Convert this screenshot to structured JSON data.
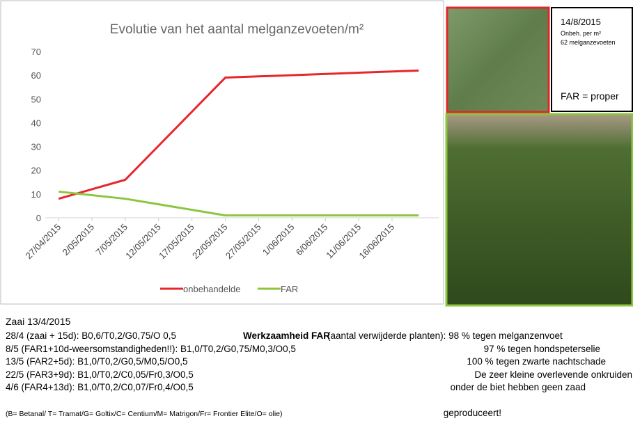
{
  "chart_data": {
    "type": "line",
    "title": "Evolutie van het aantal melganzevoeten/m²",
    "x": [
      "27/04/2015",
      "7/05/2015",
      "22/05/2015",
      "20/06/2015"
    ],
    "series": [
      {
        "name": "onbehandelde",
        "color": "#e8262a",
        "values": [
          8,
          16,
          59,
          62
        ]
      },
      {
        "name": "FAR",
        "color": "#8cc63e",
        "values": [
          11,
          8,
          1,
          1
        ]
      }
    ],
    "xlim": [
      "25/04/2015",
      "23/06/2015"
    ],
    "xticks": [
      "27/04/2015",
      "2/05/2015",
      "7/05/2015",
      "12/05/2015",
      "17/05/2015",
      "22/05/2015",
      "27/05/2015",
      "1/06/2015",
      "6/06/2015",
      "11/06/2015",
      "16/06/2015"
    ],
    "ylim": [
      0,
      70
    ],
    "yticks": [
      0,
      10,
      20,
      30,
      40,
      50,
      60,
      70
    ],
    "grid": false,
    "legend": "bottom"
  },
  "photo_note": {
    "date": "14/8/2015",
    "line1": "Onbeh. per m²",
    "line2": " 62 melganzevoeten",
    "far": "FAR = proper"
  },
  "notes": {
    "sowing": "Zaai 13/4/2015",
    "treatments": [
      "28/4 (zaai + 15d): B0,6/T0,2/G0,75/O 0,5",
      "8/5 (FAR1+10d-weersomstandigheden!!): B1,0/T0,2/G0,75/M0,3/O0,5",
      "13/5 (FAR2+5d): B1,0/T0,2/G0,5/M0,5/O0,5",
      "22/5 (FAR3+9d): B1,0/T0,2/C0,05/Fr0,3/O0,5",
      "4/6 (FAR4+13d): B1,0/T0,2/C0,07/Fr0,4/O0,5"
    ],
    "legend": "(B= Betanal/ T= Tramat/G= Goltix/C= Centium/M= Matrigon/Fr= Frontier Elite/O= olie)",
    "efficacy_label": "Werkzaamheid FAR",
    "efficacy": [
      " (aantal verwijderde planten): 98 % tegen melganzenvoet",
      "97 % tegen hondspeterselie",
      "100 % tegen zwarte nachtschade",
      "De zeer kleine overlevende onkruiden",
      "onder de biet hebben geen zaad",
      "geproduceert!"
    ]
  }
}
